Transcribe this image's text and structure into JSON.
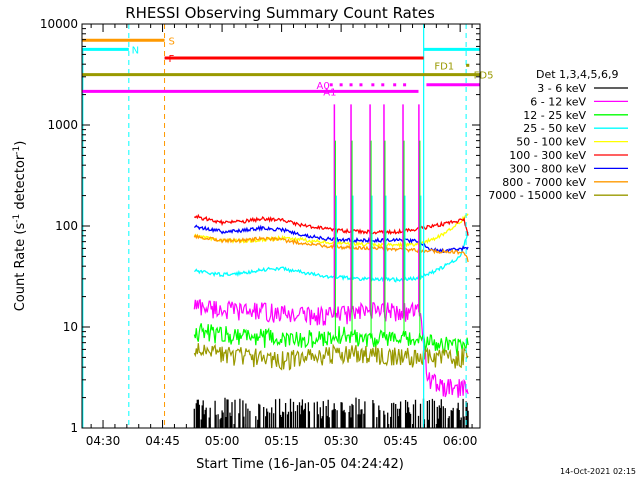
{
  "chart_data": {
    "type": "line",
    "title": "RHESSI Observing Summary Count Rates",
    "xlabel": "Start Time (16-Jan-05 04:24:42)",
    "ylabel_main": "Count Rate (s",
    "ylabel_sup1": "-1",
    "ylabel_mid": " detector",
    "ylabel_sup2": "-1",
    "ylabel_end": ")",
    "footer": "14-Oct-2021 02:15",
    "yscale": "log",
    "ylim": [
      1,
      10000
    ],
    "xlim_min": [
      264.7,
      365
    ],
    "x_ticks": [
      {
        "label": "04:30",
        "min": 270
      },
      {
        "label": "04:45",
        "min": 285
      },
      {
        "label": "05:00",
        "min": 300
      },
      {
        "label": "05:15",
        "min": 315
      },
      {
        "label": "05:30",
        "min": 330
      },
      {
        "label": "05:45",
        "min": 345
      },
      {
        "label": "06:00",
        "min": 360
      }
    ],
    "y_ticks": [
      {
        "label": "1",
        "value": 1
      },
      {
        "label": "10",
        "value": 10
      },
      {
        "label": "100",
        "value": 100
      },
      {
        "label": "1000",
        "value": 1000
      },
      {
        "label": "10000",
        "value": 10000
      }
    ],
    "legend_title": "Det 1,3,4,5,6,9",
    "series": [
      {
        "name": "3 - 6 keV",
        "color": "#000000",
        "points": [
          [
            293,
            1.4
          ],
          [
            300,
            1.5
          ],
          [
            310,
            1.3
          ],
          [
            320,
            1.4
          ],
          [
            330,
            1.5
          ],
          [
            340,
            1.4
          ],
          [
            350,
            1.3
          ],
          [
            355,
            1.3
          ]
        ]
      },
      {
        "name": "6 - 12 keV",
        "color": "#ff00ff",
        "points": [
          [
            293,
            16.5
          ],
          [
            300,
            15
          ],
          [
            305,
            14.5
          ],
          [
            310,
            14.5
          ],
          [
            315,
            13.5
          ],
          [
            320,
            13.5
          ],
          [
            325,
            13
          ],
          [
            330,
            13.5
          ],
          [
            335,
            14
          ],
          [
            340,
            14.5
          ],
          [
            345,
            14.5
          ],
          [
            350,
            14
          ],
          [
            352,
            3
          ],
          [
            356,
            2.5
          ]
        ]
      },
      {
        "name": "12 - 25 keV",
        "color": "#00ff00",
        "points": [
          [
            293,
            9.2
          ],
          [
            300,
            8.5
          ],
          [
            305,
            8.5
          ],
          [
            310,
            8
          ],
          [
            315,
            7.5
          ],
          [
            320,
            7.5
          ],
          [
            325,
            7.8
          ],
          [
            330,
            8.5
          ],
          [
            335,
            8
          ],
          [
            340,
            7.8
          ],
          [
            345,
            7.6
          ],
          [
            350,
            7.2
          ],
          [
            355,
            7
          ],
          [
            360,
            6.5
          ]
        ]
      },
      {
        "name": "25 - 50 keV",
        "color": "#00ffff",
        "points": [
          [
            293,
            36
          ],
          [
            297,
            34
          ],
          [
            300,
            33
          ],
          [
            305,
            34
          ],
          [
            310,
            37
          ],
          [
            315,
            38
          ],
          [
            320,
            35
          ],
          [
            325,
            32
          ],
          [
            330,
            31
          ],
          [
            335,
            30
          ],
          [
            340,
            30
          ],
          [
            345,
            29
          ],
          [
            350,
            31
          ],
          [
            355,
            38
          ],
          [
            360,
            50
          ],
          [
            362,
            85
          ]
        ]
      },
      {
        "name": "50 - 100 keV",
        "color": "#ffff00",
        "points": [
          [
            293,
            80
          ],
          [
            300,
            72
          ],
          [
            305,
            71
          ],
          [
            310,
            73
          ],
          [
            315,
            76
          ],
          [
            320,
            73
          ],
          [
            325,
            70
          ],
          [
            330,
            68
          ],
          [
            335,
            66
          ],
          [
            340,
            65
          ],
          [
            345,
            65
          ],
          [
            350,
            66
          ],
          [
            355,
            80
          ],
          [
            360,
            110
          ],
          [
            362,
            135
          ]
        ]
      },
      {
        "name": "100 - 300 keV",
        "color": "#ff0000",
        "points": [
          [
            293,
            125
          ],
          [
            297,
            115
          ],
          [
            300,
            108
          ],
          [
            305,
            110
          ],
          [
            310,
            118
          ],
          [
            315,
            115
          ],
          [
            320,
            102
          ],
          [
            325,
            95
          ],
          [
            330,
            90
          ],
          [
            335,
            88
          ],
          [
            340,
            87
          ],
          [
            345,
            88
          ],
          [
            350,
            95
          ],
          [
            356,
            105
          ],
          [
            361,
            115
          ],
          [
            362,
            80
          ]
        ]
      },
      {
        "name": "300 - 800 keV",
        "color": "#0000ff",
        "points": [
          [
            293,
            98
          ],
          [
            297,
            93
          ],
          [
            300,
            88
          ],
          [
            305,
            90
          ],
          [
            310,
            96
          ],
          [
            315,
            92
          ],
          [
            320,
            82
          ],
          [
            325,
            76
          ],
          [
            330,
            73
          ],
          [
            335,
            72
          ],
          [
            340,
            72
          ],
          [
            345,
            73
          ],
          [
            350,
            70
          ],
          [
            352,
            60
          ],
          [
            356,
            57
          ],
          [
            361,
            60
          ]
        ]
      },
      {
        "name": "800 - 7000 keV",
        "color": "#ff9900",
        "points": [
          [
            293,
            78
          ],
          [
            297,
            75
          ],
          [
            300,
            72
          ],
          [
            305,
            72
          ],
          [
            310,
            75
          ],
          [
            315,
            73
          ],
          [
            320,
            68
          ],
          [
            325,
            64
          ],
          [
            330,
            62
          ],
          [
            335,
            61
          ],
          [
            340,
            60
          ],
          [
            345,
            59
          ],
          [
            350,
            57
          ],
          [
            355,
            56
          ],
          [
            361,
            55
          ],
          [
            362,
            45
          ]
        ]
      },
      {
        "name": "7000 - 15000 keV",
        "color": "#999900",
        "points": [
          [
            293,
            5.8
          ],
          [
            297,
            5.5
          ],
          [
            300,
            5.3
          ],
          [
            305,
            5.2
          ],
          [
            310,
            5
          ],
          [
            315,
            4.8
          ],
          [
            320,
            4.9
          ],
          [
            325,
            5.3
          ],
          [
            330,
            5.6
          ],
          [
            335,
            5.4
          ],
          [
            340,
            5.3
          ],
          [
            345,
            5.2
          ],
          [
            350,
            5
          ],
          [
            355,
            4.9
          ],
          [
            360,
            5
          ]
        ]
      }
    ],
    "annotations": [
      {
        "label": "S",
        "color": "#ff9900",
        "y": 6900,
        "x0": 264.7,
        "x1": 285.5,
        "labelx": 286.5
      },
      {
        "label": "N",
        "color": "#00ffff",
        "y": 5600,
        "x0": 264.7,
        "x1": 276.5,
        "labelx": 277.2
      },
      {
        "label": "F",
        "color": "#ff0000",
        "y": 4600,
        "x0": 285.5,
        "x1": 350.8,
        "labelx": 286.5
      },
      {
        "label": "FD1",
        "color": "#999900",
        "y": 3900,
        "x0": 361.5,
        "x1": 362.3,
        "labelx": 353.5
      },
      {
        "label": "FD5",
        "color": "#999900",
        "y": 3150,
        "x0": 264.7,
        "x1": 365,
        "labelx": 363.4
      },
      {
        "label": "A0",
        "color": "#ff00ff",
        "y": 2500,
        "x0": 351.5,
        "x1": 365,
        "labelx": 323.8
      },
      {
        "label": "A1",
        "color": "#ff00ff",
        "y": 2150,
        "x0": 264.7,
        "x1": 349.5,
        "labelx": 325.5
      }
    ]
  }
}
